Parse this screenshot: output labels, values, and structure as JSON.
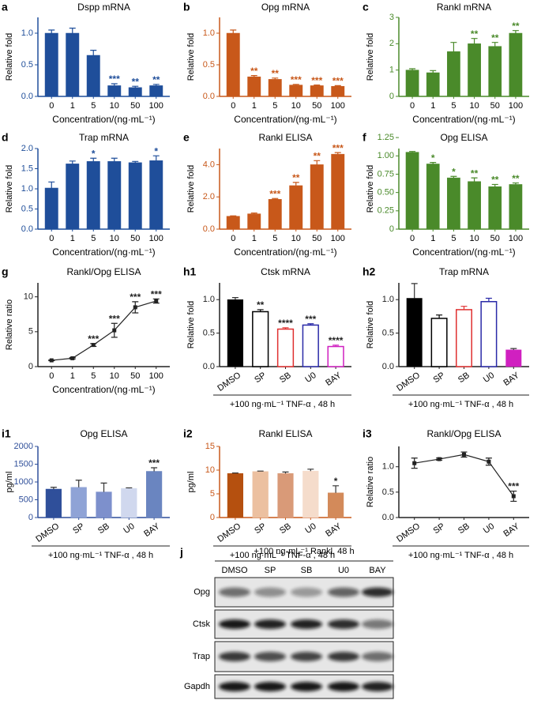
{
  "chart_data": [
    {
      "type": "bar",
      "panel": "a",
      "title": "Dspp mRNA",
      "ylabel": "Relative fold",
      "xlabel": "Concentration/(ng·mL⁻¹)",
      "color": "#1f4e9a",
      "axis_color": "#1f4e9a",
      "categories": [
        "0",
        "1",
        "5",
        "10",
        "50",
        "100"
      ],
      "values": [
        1.0,
        1.0,
        0.65,
        0.17,
        0.14,
        0.17
      ],
      "errors": [
        0.05,
        0.08,
        0.08,
        0.03,
        0.02,
        0.02
      ],
      "significance": [
        null,
        null,
        null,
        "***",
        "**",
        "**"
      ],
      "ylim": [
        0,
        1.25
      ],
      "yticks": [
        {
          "value": 0,
          "label": "0.0"
        },
        {
          "value": 0.5,
          "label": "0.5"
        },
        {
          "value": 1,
          "label": "1.0"
        }
      ]
    },
    {
      "type": "bar",
      "panel": "b",
      "title": "Opg mRNA",
      "ylabel": "Relative fold",
      "xlabel": "Concentration/(ng·mL⁻¹)",
      "color": "#c8581a",
      "axis_color": "#c8581a",
      "categories": [
        "0",
        "1",
        "5",
        "10",
        "50",
        "100"
      ],
      "values": [
        1.0,
        0.31,
        0.27,
        0.18,
        0.17,
        0.16
      ],
      "errors": [
        0.05,
        0.02,
        0.02,
        0.01,
        0.01,
        0.01
      ],
      "significance": [
        null,
        "**",
        "**",
        "***",
        "***",
        "***"
      ],
      "ylim": [
        0,
        1.25
      ],
      "yticks": [
        {
          "value": 0,
          "label": "0.0"
        },
        {
          "value": 0.5,
          "label": "0.5"
        },
        {
          "value": 1,
          "label": "1.0"
        }
      ]
    },
    {
      "type": "bar",
      "panel": "c",
      "title": "Rankl mRNA",
      "ylabel": "Relative fold",
      "xlabel": "Concentration/(ng·mL⁻¹)",
      "color": "#4a8a2a",
      "axis_color": "#4a8a2a",
      "categories": [
        "0",
        "1",
        "5",
        "10",
        "50",
        "100"
      ],
      "values": [
        1.0,
        0.9,
        1.7,
        2.0,
        1.9,
        2.4
      ],
      "errors": [
        0.05,
        0.08,
        0.35,
        0.2,
        0.15,
        0.1
      ],
      "significance": [
        null,
        null,
        null,
        "**",
        "**",
        "**"
      ],
      "ylim": [
        0,
        3
      ],
      "yticks": [
        0,
        1,
        2,
        3
      ]
    },
    {
      "type": "bar",
      "panel": "d",
      "title": "Trap mRNA",
      "ylabel": "Relative fold",
      "xlabel": "Concentration/(ng·mL⁻¹)",
      "color": "#1f4e9a",
      "axis_color": "#1f4e9a",
      "categories": [
        "0",
        "1",
        "5",
        "10",
        "50",
        "100"
      ],
      "values": [
        1.02,
        1.62,
        1.68,
        1.68,
        1.65,
        1.7
      ],
      "errors": [
        0.15,
        0.07,
        0.08,
        0.08,
        0.03,
        0.12
      ],
      "significance": [
        null,
        null,
        "*",
        null,
        null,
        "*"
      ],
      "ylim": [
        0,
        2
      ],
      "yticks": [
        {
          "value": 0,
          "label": "0.0"
        },
        {
          "value": 0.5,
          "label": "0.5"
        },
        {
          "value": 1,
          "label": "1.0"
        },
        {
          "value": 1.5,
          "label": "1.5"
        },
        {
          "value": 2,
          "label": "2.0"
        }
      ]
    },
    {
      "type": "bar",
      "panel": "e",
      "title": "Rankl ELISA",
      "ylabel": "Relative fold",
      "xlabel": "Concentration/(ng·mL⁻¹)",
      "color": "#c8581a",
      "axis_color": "#c8581a",
      "categories": [
        "0",
        "1",
        "5",
        "10",
        "50",
        "100"
      ],
      "values": [
        0.8,
        0.95,
        1.85,
        2.7,
        4.0,
        4.65
      ],
      "errors": [
        0.02,
        0.05,
        0.05,
        0.2,
        0.25,
        0.1
      ],
      "significance": [
        null,
        null,
        "***",
        "**",
        "**",
        "***"
      ],
      "ylim": [
        0,
        5
      ],
      "yticks": [
        {
          "value": 0,
          "label": "0.0"
        },
        {
          "value": 2,
          "label": "2.0"
        },
        {
          "value": 4,
          "label": "4.0"
        }
      ]
    },
    {
      "type": "bar",
      "panel": "f",
      "title": "Opg ELISA",
      "ylabel": "Relative fold",
      "xlabel": "Concentration/(ng·mL⁻¹)",
      "color": "#4a8a2a",
      "axis_color": "#4a8a2a",
      "categories": [
        "0",
        "1",
        "5",
        "10",
        "50",
        "100"
      ],
      "values": [
        1.05,
        0.89,
        0.7,
        0.65,
        0.58,
        0.61
      ],
      "errors": [
        0.01,
        0.02,
        0.02,
        0.05,
        0.03,
        0.02
      ],
      "significance": [
        null,
        "*",
        "*",
        "**",
        "**",
        "**"
      ],
      "ylim": [
        0,
        1.1
      ],
      "yticks": [
        0,
        {
          "value": 0.25,
          "label": "0.25"
        },
        {
          "value": 0.5,
          "label": "0.50"
        },
        {
          "value": 0.75,
          "label": "0.75"
        },
        {
          "value": 1,
          "label": "1.00"
        },
        {
          "value": 1.25,
          "label": "1.25"
        }
      ]
    },
    {
      "type": "line",
      "panel": "g",
      "title": "Rankl/Opg ELISA",
      "ylabel": "Relative ratio",
      "xlabel": "Concentration/(ng·mL⁻¹)",
      "color": "#222222",
      "axis_color": "#222222",
      "categories": [
        "0",
        "1",
        "5",
        "10",
        "50",
        "100"
      ],
      "values": [
        0.9,
        1.2,
        3.1,
        5.2,
        8.5,
        9.4
      ],
      "errors": [
        0.05,
        0.1,
        0.2,
        1.0,
        0.8,
        0.3
      ],
      "significance": [
        null,
        null,
        "***",
        "***",
        "***",
        "***"
      ],
      "ylim": [
        0,
        12
      ],
      "yticks": [
        0,
        5,
        10
      ]
    },
    {
      "type": "bar",
      "panel": "h1",
      "title": "Ctsk mRNA",
      "ylabel": "Relative fold",
      "xlabel": "+100 ng·mL⁻¹ TNF-α , 48 h",
      "axis_color": "#222222",
      "colors": [
        "#000000",
        "#000000",
        "#e03030",
        "#2a2aa8",
        "#d020c0"
      ],
      "filled": [
        true,
        false,
        false,
        false,
        false
      ],
      "categories": [
        "DMSO",
        "SP",
        "SB",
        "U0",
        "BAY"
      ],
      "values": [
        1.0,
        0.82,
        0.56,
        0.62,
        0.3
      ],
      "errors": [
        0.03,
        0.03,
        0.02,
        0.02,
        0.02
      ],
      "significance": [
        null,
        "**",
        "****",
        "***",
        "****"
      ],
      "ylim": [
        0,
        1.25
      ],
      "yticks": [
        {
          "value": 0,
          "label": "0.0"
        },
        {
          "value": 0.5,
          "label": "0.5"
        },
        {
          "value": 1,
          "label": "1.0"
        }
      ]
    },
    {
      "type": "bar",
      "panel": "h2",
      "title": "Trap mRNA",
      "ylabel": "Relative fold",
      "xlabel": "+100 ng·mL⁻¹ TNF-α , 48 h",
      "axis_color": "#222222",
      "colors": [
        "#000000",
        "#000000",
        "#e03030",
        "#2a2aa8",
        "#d020c0"
      ],
      "filled": [
        true,
        false,
        false,
        false,
        true
      ],
      "categories": [
        "DMSO",
        "SP",
        "SB",
        "U0",
        "BAY"
      ],
      "values": [
        1.02,
        0.72,
        0.85,
        0.97,
        0.25
      ],
      "errors": [
        0.22,
        0.05,
        0.05,
        0.05,
        0.02
      ],
      "ylim": [
        0,
        1.25
      ],
      "yticks": [
        {
          "value": 0,
          "label": "0.0"
        },
        {
          "value": 0.5,
          "label": "0.5"
        },
        {
          "value": 1,
          "label": "1.0"
        }
      ]
    },
    {
      "type": "bar",
      "panel": "i1",
      "title": "Opg ELISA",
      "ylabel": "pg/ml",
      "xlabel": "+100 ng·mL⁻¹ TNF-α , 48 h",
      "axis_color": "#2f4f9a",
      "colors": [
        "#2f4f9a",
        "#8fa3d6",
        "#7d90cc",
        "#d0d8ee",
        "#6a85c0"
      ],
      "filled": [
        true,
        true,
        true,
        true,
        true
      ],
      "categories": [
        "DMSO",
        "SP",
        "SB",
        "U0",
        "BAY"
      ],
      "values": [
        800,
        850,
        720,
        820,
        1300
      ],
      "errors": [
        50,
        200,
        250,
        15,
        100
      ],
      "significance": [
        null,
        null,
        null,
        null,
        "***"
      ],
      "ylim": [
        0,
        2000
      ],
      "yticks": [
        0,
        500,
        1000,
        1500,
        2000
      ]
    },
    {
      "type": "bar",
      "panel": "i2",
      "title": "Rankl ELISA",
      "ylabel": "pg/ml",
      "xlabel": "+100 ng·mL⁻¹ TNF-α , 48 h",
      "axis_color": "#c8581a",
      "colors": [
        "#b5500f",
        "#ecc0a0",
        "#d99a78",
        "#f5dccb",
        "#d38a5a"
      ],
      "filled": [
        true,
        true,
        true,
        true,
        true
      ],
      "categories": [
        "DMSO",
        "SP",
        "SB",
        "U0",
        "BAY"
      ],
      "values": [
        9.3,
        9.7,
        9.3,
        9.8,
        5.2
      ],
      "errors": [
        0.1,
        0.1,
        0.3,
        0.4,
        1.5
      ],
      "significance": [
        null,
        null,
        null,
        null,
        "*"
      ],
      "ylim": [
        0,
        15
      ],
      "yticks": [
        0,
        5,
        10,
        15
      ]
    },
    {
      "type": "line",
      "panel": "i3",
      "title": "Rankl/Opg ELISA",
      "ylabel": "Relative ratio",
      "xlabel": "+100 ng·mL⁻¹ TNF-α , 48 h",
      "color": "#222222",
      "axis_color": "#222222",
      "categories": [
        "DMSO",
        "SP",
        "SB",
        "U0",
        "BAY"
      ],
      "values": [
        1.07,
        1.15,
        1.24,
        1.1,
        0.42
      ],
      "errors": [
        0.1,
        0.02,
        0.05,
        0.07,
        0.1
      ],
      "significance": [
        null,
        null,
        null,
        null,
        "***"
      ],
      "ylim": [
        0,
        1.4
      ],
      "yticks": [
        {
          "value": 0,
          "label": "0.0"
        },
        {
          "value": 0.5,
          "label": "0.5"
        },
        {
          "value": 1,
          "label": "1.0"
        }
      ]
    }
  ],
  "blot": {
    "panel": "j",
    "title": "+100 ng·mL⁻¹ Rankl, 48 h",
    "lanes": [
      "DMSO",
      "SP",
      "SB",
      "U0",
      "BAY"
    ],
    "rows": [
      "Opg",
      "Ctsk",
      "Trap",
      "Gapdh"
    ]
  }
}
